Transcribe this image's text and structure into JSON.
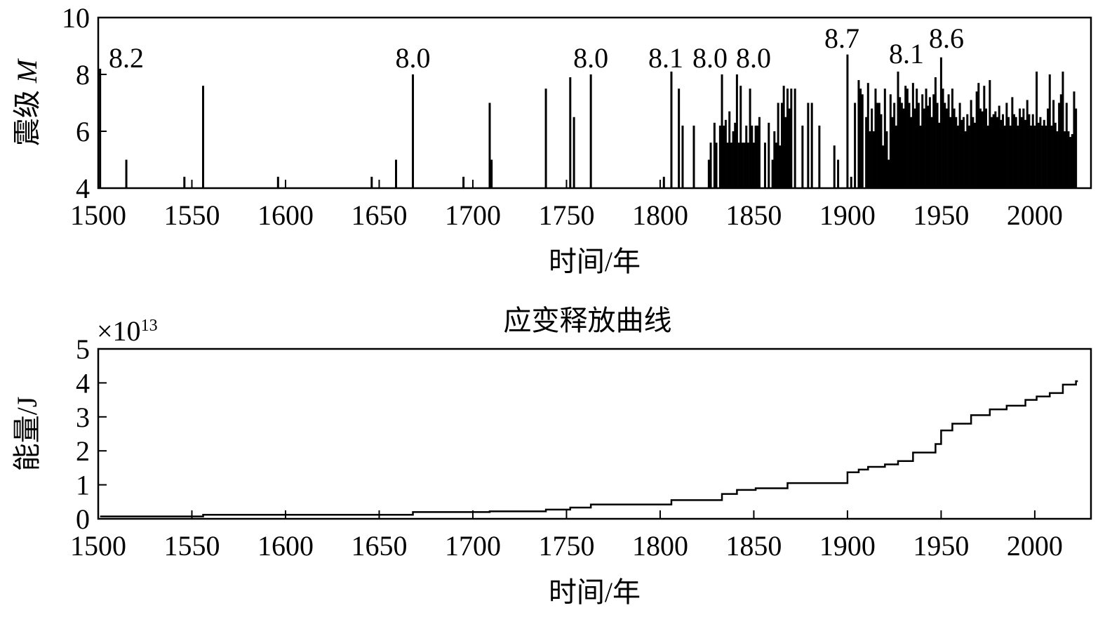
{
  "chart_data": [
    {
      "type": "bar",
      "ylabel": "震级",
      "ylabel_var": "M",
      "xlabel": "时间/年",
      "xlim": [
        1500,
        2030
      ],
      "ylim": [
        4,
        10
      ],
      "xticks": [
        "1500",
        "1550",
        "1600",
        "1650",
        "1700",
        "1750",
        "1800",
        "1850",
        "1900",
        "1950",
        "2000"
      ],
      "yticks": [
        "4",
        "6",
        "8",
        "10"
      ],
      "annotations": [
        {
          "year": 1505,
          "text": "8.2"
        },
        {
          "year": 1668,
          "text": "8.0"
        },
        {
          "year": 1763,
          "text": "8.0"
        },
        {
          "year": 1808,
          "text": "8.1"
        },
        {
          "year": 1830,
          "text": "8.0"
        },
        {
          "year": 1851,
          "text": "8.0"
        },
        {
          "year": 1900,
          "text": "8.7"
        },
        {
          "year": 1927,
          "text": "8.1"
        },
        {
          "year": 1950,
          "text": "8.6"
        }
      ],
      "events": [
        [
          1501,
          8.2
        ],
        [
          1515,
          5.0
        ],
        [
          1546,
          4.4
        ],
        [
          1556,
          7.6
        ],
        [
          1596,
          4.4
        ],
        [
          1646,
          4.4
        ],
        [
          1659,
          5.0
        ],
        [
          1668,
          8.0
        ],
        [
          1695,
          4.4
        ],
        [
          1709,
          7.0
        ],
        [
          1710,
          5.0
        ],
        [
          1739,
          7.5
        ],
        [
          1752,
          7.9
        ],
        [
          1754,
          6.5
        ],
        [
          1763,
          8.0
        ],
        [
          1802,
          4.4
        ],
        [
          1806,
          8.1
        ],
        [
          1810,
          7.5
        ],
        [
          1812,
          6.2
        ],
        [
          1818,
          6.2
        ],
        [
          1826,
          5.0
        ],
        [
          1827,
          5.6
        ],
        [
          1829,
          6.3
        ],
        [
          1830,
          5.6
        ],
        [
          1832,
          6.2
        ],
        [
          1833,
          8.0
        ],
        [
          1834,
          6.2
        ],
        [
          1835,
          6.4
        ],
        [
          1836,
          5.6
        ],
        [
          1837,
          6.7
        ],
        [
          1838,
          5.6
        ],
        [
          1839,
          6.0
        ],
        [
          1840,
          6.3
        ],
        [
          1841,
          8.0
        ],
        [
          1842,
          5.6
        ],
        [
          1843,
          7.6
        ],
        [
          1844,
          5.6
        ],
        [
          1845,
          5.6
        ],
        [
          1846,
          6.2
        ],
        [
          1847,
          5.6
        ],
        [
          1848,
          7.5
        ],
        [
          1849,
          6.2
        ],
        [
          1850,
          5.6
        ],
        [
          1851,
          6.2
        ],
        [
          1852,
          6.2
        ],
        [
          1853,
          6.5
        ],
        [
          1856,
          5.6
        ],
        [
          1858,
          6.3
        ],
        [
          1860,
          5.0
        ],
        [
          1861,
          6.0
        ],
        [
          1862,
          5.6
        ],
        [
          1863,
          7.0
        ],
        [
          1864,
          5.5
        ],
        [
          1865,
          7.0
        ],
        [
          1866,
          7.6
        ],
        [
          1867,
          6.5
        ],
        [
          1868,
          7.5
        ],
        [
          1869,
          6.8
        ],
        [
          1870,
          7.5
        ],
        [
          1872,
          7.5
        ],
        [
          1876,
          6.2
        ],
        [
          1879,
          7.0
        ],
        [
          1881,
          7.0
        ],
        [
          1885,
          6.2
        ],
        [
          1893,
          5.5
        ],
        [
          1895,
          5.0
        ],
        [
          1900,
          8.7
        ],
        [
          1902,
          4.4
        ],
        [
          1904,
          7.0
        ],
        [
          1906,
          7.8
        ],
        [
          1907,
          7.5
        ],
        [
          1908,
          7.3
        ],
        [
          1910,
          6.5
        ],
        [
          1911,
          7.7
        ],
        [
          1912,
          6.0
        ],
        [
          1913,
          6.8
        ],
        [
          1914,
          6.0
        ],
        [
          1915,
          7.5
        ],
        [
          1916,
          7.0
        ],
        [
          1917,
          7.0
        ],
        [
          1918,
          6.6
        ],
        [
          1919,
          5.5
        ],
        [
          1920,
          7.5
        ],
        [
          1921,
          6.0
        ],
        [
          1922,
          5.0
        ],
        [
          1923,
          7.3
        ],
        [
          1924,
          6.5
        ],
        [
          1925,
          7.0
        ],
        [
          1926,
          6.2
        ],
        [
          1927,
          8.1
        ],
        [
          1928,
          7.2
        ],
        [
          1929,
          7.0
        ],
        [
          1930,
          6.8
        ],
        [
          1931,
          7.6
        ],
        [
          1932,
          7.5
        ],
        [
          1933,
          7.0
        ],
        [
          1934,
          6.5
        ],
        [
          1935,
          7.7
        ],
        [
          1936,
          6.8
        ],
        [
          1937,
          7.5
        ],
        [
          1938,
          7.0
        ],
        [
          1939,
          6.2
        ],
        [
          1940,
          7.3
        ],
        [
          1941,
          6.8
        ],
        [
          1942,
          7.5
        ],
        [
          1943,
          6.9
        ],
        [
          1944,
          7.2
        ],
        [
          1945,
          6.5
        ],
        [
          1946,
          7.3
        ],
        [
          1947,
          7.9
        ],
        [
          1948,
          7.0
        ],
        [
          1949,
          6.3
        ],
        [
          1950,
          8.6
        ],
        [
          1951,
          7.5
        ],
        [
          1952,
          7.0
        ],
        [
          1953,
          6.8
        ],
        [
          1954,
          7.3
        ],
        [
          1955,
          6.5
        ],
        [
          1956,
          7.5
        ],
        [
          1957,
          6.8
        ],
        [
          1958,
          6.5
        ],
        [
          1959,
          6.2
        ],
        [
          1960,
          7.0
        ],
        [
          1961,
          6.4
        ],
        [
          1962,
          6.5
        ],
        [
          1963,
          6.0
        ],
        [
          1964,
          6.6
        ],
        [
          1965,
          6.2
        ],
        [
          1966,
          7.1
        ],
        [
          1967,
          6.5
        ],
        [
          1968,
          6.3
        ],
        [
          1969,
          7.4
        ],
        [
          1970,
          7.7
        ],
        [
          1971,
          6.8
        ],
        [
          1972,
          6.7
        ],
        [
          1973,
          7.6
        ],
        [
          1974,
          6.8
        ],
        [
          1975,
          6.2
        ],
        [
          1976,
          7.8
        ],
        [
          1977,
          6.5
        ],
        [
          1978,
          6.6
        ],
        [
          1979,
          6.7
        ],
        [
          1980,
          6.5
        ],
        [
          1981,
          6.9
        ],
        [
          1982,
          6.4
        ],
        [
          1983,
          6.6
        ],
        [
          1984,
          6.2
        ],
        [
          1985,
          7.0
        ],
        [
          1986,
          6.5
        ],
        [
          1987,
          6.2
        ],
        [
          1988,
          7.2
        ],
        [
          1989,
          6.6
        ],
        [
          1990,
          6.5
        ],
        [
          1991,
          6.2
        ],
        [
          1992,
          6.8
        ],
        [
          1993,
          6.5
        ],
        [
          1994,
          6.8
        ],
        [
          1995,
          6.4
        ],
        [
          1996,
          7.1
        ],
        [
          1997,
          6.6
        ],
        [
          1998,
          6.2
        ],
        [
          1999,
          6.6
        ],
        [
          2000,
          6.2
        ],
        [
          2001,
          8.1
        ],
        [
          2002,
          6.3
        ],
        [
          2003,
          6.5
        ],
        [
          2004,
          6.2
        ],
        [
          2005,
          6.4
        ],
        [
          2006,
          6.2
        ],
        [
          2007,
          6.8
        ],
        [
          2008,
          8.0
        ],
        [
          2009,
          6.2
        ],
        [
          2010,
          7.1
        ],
        [
          2011,
          6.3
        ],
        [
          2012,
          6.0
        ],
        [
          2013,
          7.0
        ],
        [
          2014,
          7.3
        ],
        [
          2015,
          8.1
        ],
        [
          2016,
          6.0
        ],
        [
          2017,
          7.0
        ],
        [
          2018,
          6.0
        ],
        [
          2019,
          5.8
        ],
        [
          2020,
          5.9
        ],
        [
          2021,
          7.4
        ],
        [
          2022,
          6.8
        ]
      ]
    },
    {
      "type": "line",
      "title": "应变释放曲线",
      "sci_base": "×10",
      "sci_exp": "13",
      "ylabel": "能量/J",
      "xlabel": "时间/年",
      "xlim": [
        1500,
        2030
      ],
      "ylim": [
        0,
        5
      ],
      "xticks": [
        "1500",
        "1550",
        "1600",
        "1650",
        "1700",
        "1750",
        "1800",
        "1850",
        "1900",
        "1950",
        "2000"
      ],
      "yticks": [
        "0",
        "1",
        "2",
        "3",
        "4",
        "5"
      ],
      "x": [
        1501,
        1556,
        1668,
        1709,
        1739,
        1752,
        1763,
        1806,
        1833,
        1841,
        1851,
        1868,
        1900,
        1906,
        1911,
        1920,
        1927,
        1935,
        1947,
        1950,
        1956,
        1966,
        1976,
        1985,
        1995,
        2001,
        2008,
        2015,
        2022
      ],
      "y": [
        0.07,
        0.12,
        0.2,
        0.22,
        0.27,
        0.33,
        0.42,
        0.55,
        0.73,
        0.85,
        0.9,
        1.05,
        1.37,
        1.45,
        1.53,
        1.6,
        1.7,
        1.95,
        2.2,
        2.6,
        2.8,
        3.05,
        3.22,
        3.33,
        3.5,
        3.6,
        3.7,
        3.95,
        4.05
      ]
    }
  ]
}
